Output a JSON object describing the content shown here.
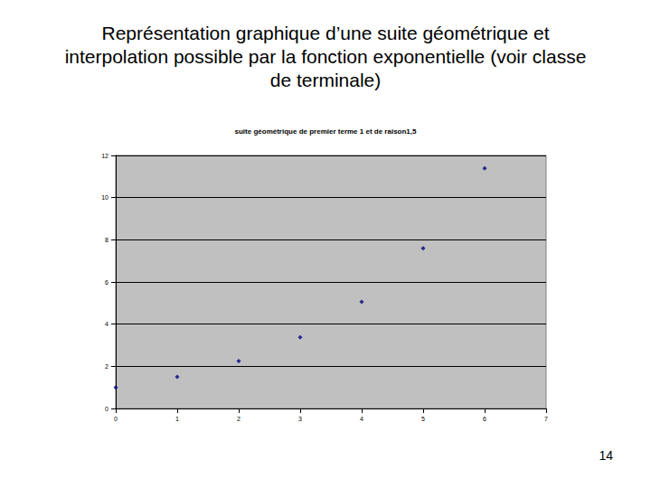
{
  "slide": {
    "title": "Représentation graphique d’une suite géométrique et interpolation possible par la fonction exponentielle (voir classe de terminale)",
    "page": "14"
  },
  "chart_data": {
    "type": "scatter",
    "title": "suite géométrique de premier terme 1 et de raison1,5",
    "x": [
      0,
      1,
      2,
      3,
      4,
      5,
      6
    ],
    "values": [
      1,
      1.5,
      2.25,
      3.375,
      5.0625,
      7.59375,
      11.390625
    ],
    "color": "#000080",
    "marker": "diamond",
    "xlim": [
      0,
      7
    ],
    "xticks": [
      0,
      1,
      2,
      3,
      4,
      5,
      6,
      7
    ],
    "ylim": [
      0,
      12
    ],
    "yticks": [
      0,
      2,
      4,
      6,
      8,
      10,
      12
    ],
    "grid": true
  }
}
